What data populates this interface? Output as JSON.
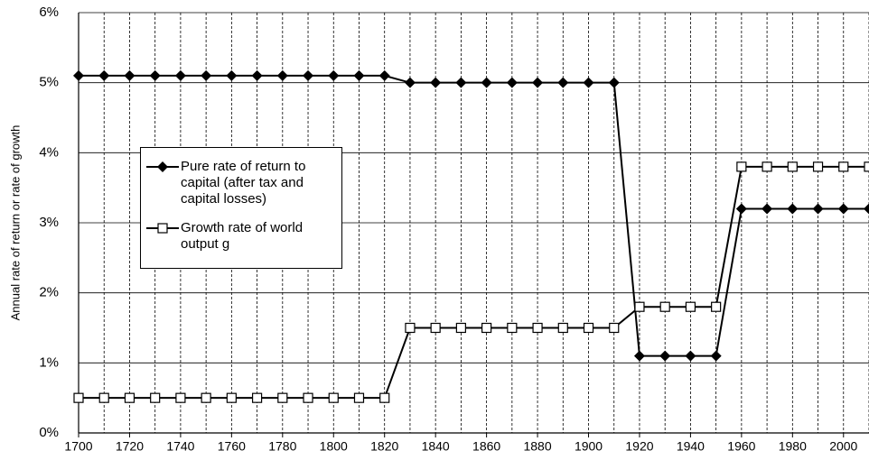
{
  "chart_data": {
    "type": "line",
    "y_label": "Annual rate of return or rate of growth",
    "x": [
      1700,
      1710,
      1720,
      1730,
      1740,
      1750,
      1760,
      1770,
      1780,
      1790,
      1800,
      1810,
      1820,
      1830,
      1840,
      1850,
      1860,
      1870,
      1880,
      1890,
      1900,
      1910,
      1920,
      1930,
      1940,
      1950,
      1960,
      1970,
      1980,
      1990,
      2000,
      2010
    ],
    "series": [
      {
        "name": "Pure rate of return to capital (after tax and capital losses)",
        "color": "#000000",
        "marker": "diamond",
        "values": [
          5.1,
          5.1,
          5.1,
          5.1,
          5.1,
          5.1,
          5.1,
          5.1,
          5.1,
          5.1,
          5.1,
          5.1,
          5.1,
          5.0,
          5.0,
          5.0,
          5.0,
          5.0,
          5.0,
          5.0,
          5.0,
          5.0,
          1.1,
          1.1,
          1.1,
          1.1,
          3.2,
          3.2,
          3.2,
          3.2,
          3.2,
          3.2
        ]
      },
      {
        "name": "Growth rate of world output g",
        "color": "#000000",
        "marker": "square",
        "values": [
          0.5,
          0.5,
          0.5,
          0.5,
          0.5,
          0.5,
          0.5,
          0.5,
          0.5,
          0.5,
          0.5,
          0.5,
          0.5,
          1.5,
          1.5,
          1.5,
          1.5,
          1.5,
          1.5,
          1.5,
          1.5,
          1.5,
          1.8,
          1.8,
          1.8,
          1.8,
          3.8,
          3.8,
          3.8,
          3.8,
          3.8,
          3.8
        ]
      }
    ],
    "xlim": [
      1700,
      2010
    ],
    "xticks": [
      1700,
      1720,
      1740,
      1760,
      1780,
      1800,
      1820,
      1840,
      1860,
      1880,
      1900,
      1920,
      1940,
      1960,
      1980,
      2000
    ],
    "ylim": [
      0,
      6
    ],
    "yticks": [
      {
        "value": 0,
        "label": "0%"
      },
      {
        "value": 1,
        "label": "1%"
      },
      {
        "value": 2,
        "label": "2%"
      },
      {
        "value": 3,
        "label": "3%"
      },
      {
        "value": 4,
        "label": "4%"
      },
      {
        "value": 5,
        "label": "5%"
      },
      {
        "value": 6,
        "label": "6%"
      }
    ],
    "grid": true,
    "legend": "upper left"
  }
}
